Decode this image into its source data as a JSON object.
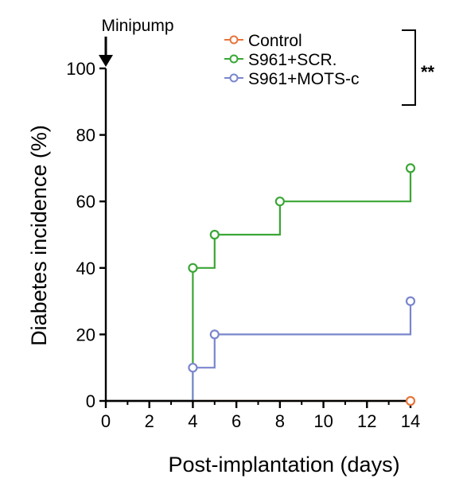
{
  "chart_data": {
    "type": "line",
    "step": true,
    "title": "",
    "xlabel": "Post-implantation (days)",
    "ylabel": "Diabetes incidence (%)",
    "xlim": [
      0,
      14
    ],
    "ylim": [
      0,
      100
    ],
    "xticks": [
      0,
      2,
      4,
      6,
      8,
      10,
      12,
      14
    ],
    "yticks": [
      0,
      20,
      40,
      60,
      80,
      100
    ],
    "minor_xticks": [
      1,
      3,
      5,
      7,
      9,
      11,
      13
    ],
    "grid": false,
    "legend_position": "top-right",
    "annotation": {
      "label": "Minipump",
      "x": 0
    },
    "significance": "**",
    "series": [
      {
        "name": "Control",
        "color": "#e8743b",
        "points": [
          [
            14,
            0
          ]
        ],
        "step_path": [
          [
            0,
            0
          ],
          [
            14,
            0
          ]
        ]
      },
      {
        "name": "S961+SCR.",
        "color": "#3aa635",
        "points": [
          [
            4,
            40
          ],
          [
            5,
            50
          ],
          [
            8,
            60
          ],
          [
            14,
            70
          ]
        ],
        "step_path": [
          [
            0,
            0
          ],
          [
            4,
            0
          ],
          [
            4,
            40
          ],
          [
            5,
            40
          ],
          [
            5,
            50
          ],
          [
            8,
            50
          ],
          [
            8,
            60
          ],
          [
            14,
            60
          ],
          [
            14,
            70
          ]
        ]
      },
      {
        "name": "S961+MOTS-c",
        "color": "#7a86cc",
        "points": [
          [
            4,
            10
          ],
          [
            5,
            20
          ],
          [
            14,
            30
          ]
        ],
        "step_path": [
          [
            0,
            0
          ],
          [
            4,
            0
          ],
          [
            4,
            10
          ],
          [
            5,
            10
          ],
          [
            5,
            20
          ],
          [
            14,
            20
          ],
          [
            14,
            30
          ]
        ]
      }
    ]
  }
}
